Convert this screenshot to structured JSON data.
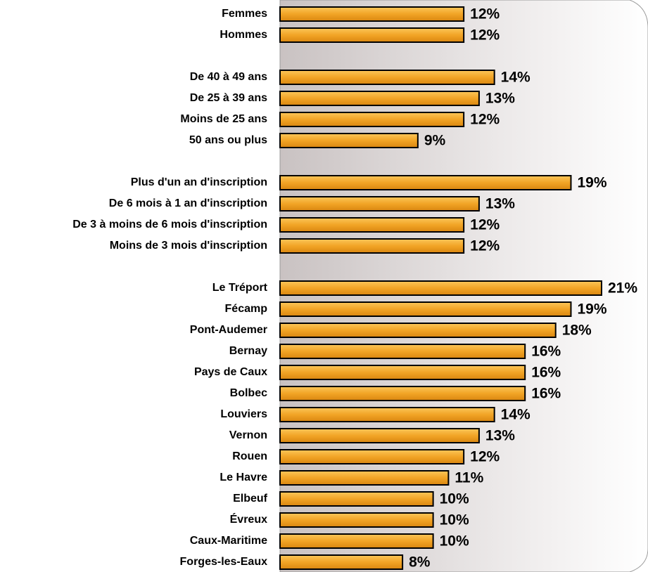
{
  "chart_data": {
    "type": "bar",
    "orientation": "horizontal",
    "color": "#f0a020",
    "categories": [
      "Femmes",
      "Hommes",
      null,
      "De 40 à 49 ans",
      "De 25 à 39 ans",
      "Moins de 25 ans",
      "50 ans ou plus",
      null,
      "Plus d'un an d'inscription",
      "De 6 mois à 1 an d'inscription",
      "De 3 à moins de 6 mois d'inscription",
      "Moins de 3 mois d'inscription",
      null,
      "Le Tréport",
      "Fécamp",
      "Pont-Audemer",
      "Bernay",
      "Pays de Caux",
      "Bolbec",
      "Louviers",
      "Vernon",
      "Rouen",
      "Le Havre",
      "Elbeuf",
      "Évreux",
      "Caux-Maritime",
      "Forges-les-Eaux"
    ],
    "values": [
      12,
      12,
      null,
      14,
      13,
      12,
      9,
      null,
      19,
      13,
      12,
      12,
      null,
      21,
      19,
      18,
      16,
      16,
      16,
      14,
      13,
      12,
      11,
      10,
      10,
      10,
      8
    ],
    "value_labels": [
      "12%",
      "12%",
      null,
      "14%",
      "13%",
      "12%",
      "9%",
      null,
      "19%",
      "13%",
      "12%",
      "12%",
      null,
      "21%",
      "19%",
      "18%",
      "16%",
      "16%",
      "16%",
      "14%",
      "13%",
      "12%",
      "11%",
      "10%",
      "10%",
      "10%",
      "8%"
    ]
  }
}
